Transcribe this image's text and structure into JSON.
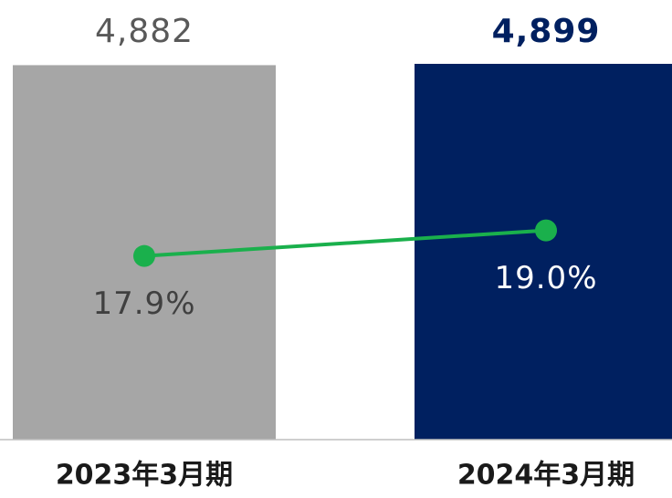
{
  "chart_data": {
    "type": "bar",
    "categories": [
      "2023年3月期",
      "2024年3月期"
    ],
    "series": [
      {
        "type": "bar",
        "colors": [
          "#a6a6a6",
          "#002060"
        ],
        "values": [
          4882,
          4899
        ],
        "value_labels": [
          "4,882",
          "4,899"
        ]
      },
      {
        "type": "line",
        "axis": "y2",
        "color": "#1ab04c",
        "values": [
          17.9,
          19.0
        ],
        "value_labels": [
          "17.9%",
          "19.0%"
        ]
      }
    ],
    "ylim": [
      0,
      5000
    ],
    "y2lim": [
      10,
      26.5
    ]
  }
}
